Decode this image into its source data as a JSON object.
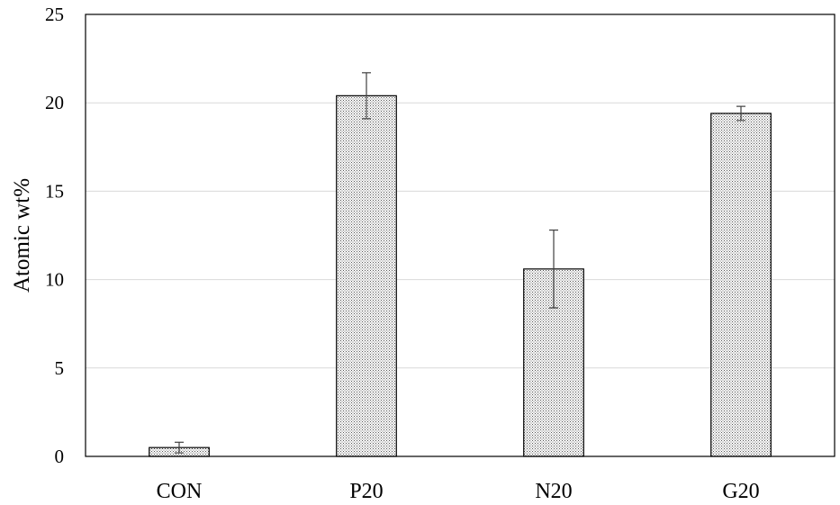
{
  "chart_data": {
    "type": "bar",
    "title": "",
    "xlabel": "",
    "ylabel": "Atomic wt%",
    "categories": [
      "CON",
      "P20",
      "N20",
      "G20"
    ],
    "values": [
      0.5,
      20.4,
      10.6,
      19.4
    ],
    "error": [
      0.3,
      1.3,
      2.2,
      0.4
    ],
    "ylim": [
      0,
      25
    ],
    "yticks": [
      0,
      5,
      10,
      15,
      20,
      25
    ],
    "grid": true,
    "legend": "none",
    "bar_pattern": "dotted",
    "colors": {
      "bar_fill_base": "#ffffff",
      "bar_dot": "#555555",
      "bar_edge": "#000000",
      "grid": "#d9d9d9",
      "frame": "#000000",
      "error_bar": "#404040"
    }
  }
}
